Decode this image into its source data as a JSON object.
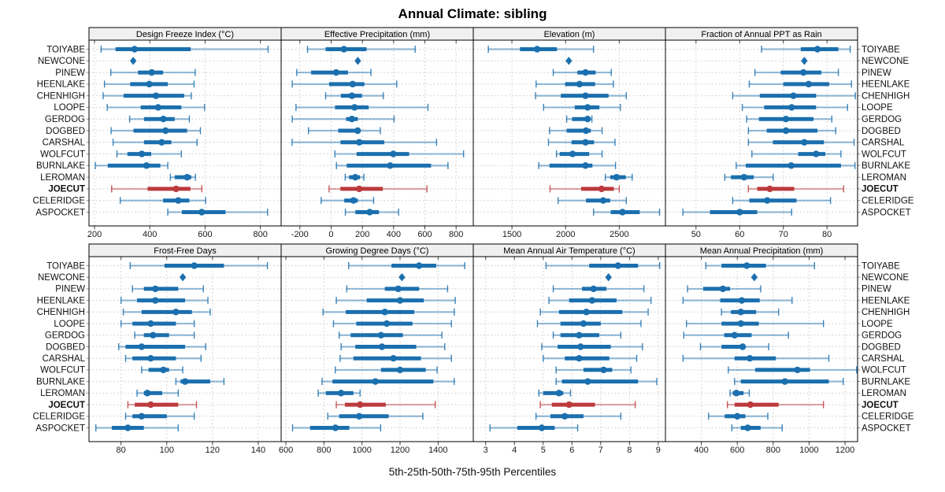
{
  "title": "Annual Climate: sibling",
  "x_axis_title": "5th-25th-50th-75th-95th Percentiles",
  "percentile_labels": [
    "5th",
    "25th",
    "50th",
    "75th",
    "95th"
  ],
  "sites": [
    "TOIYABE",
    "NEWCONE",
    "PINEW",
    "HEENLAKE",
    "CHENHIGH",
    "LOOPE",
    "GERDOG",
    "DOGBED",
    "CARSHAL",
    "WOLFCUT",
    "BURNLAKE",
    "LEROMAN",
    "JOECUT",
    "CELERIDGE",
    "ASPOCKET"
  ],
  "highlight_site": "JOECUT",
  "colors": {
    "primary": "#1b6fae",
    "highlight": "#bb3a3d",
    "strip_bg": "#f0f0f0",
    "grid": "#c9c9c9",
    "axis_text": "#1a1a1a",
    "border": "#000000"
  },
  "chart_data": {
    "type": "dotplot",
    "description": "Percentile range dotplot grid: per site, thin line = 5th-95th, thick line = 25th-75th, dot = 50th percentile; single diamond when all percentiles equal.",
    "panels": [
      {
        "title": "Design Freeze Index (°C)",
        "row": 0,
        "col": 0,
        "xlim": [
          180,
          875
        ],
        "ticks": [
          200,
          400,
          600,
          800
        ],
        "values": [
          [
            224,
            276,
            345,
            548,
            828
          ],
          [
            340,
            340,
            340,
            340,
            340
          ],
          [
            259,
            357,
            407,
            448,
            564
          ],
          [
            236,
            329,
            398,
            465,
            560
          ],
          [
            231,
            305,
            422,
            524,
            550
          ],
          [
            246,
            367,
            430,
            514,
            598
          ],
          [
            327,
            379,
            449,
            490,
            543
          ],
          [
            260,
            341,
            457,
            535,
            583
          ],
          [
            267,
            379,
            443,
            478,
            571
          ],
          [
            281,
            319,
            371,
            405,
            514
          ],
          [
            203,
            248,
            388,
            438,
            465
          ],
          [
            474,
            490,
            535,
            550,
            565
          ],
          [
            262,
            392,
            495,
            547,
            588
          ],
          [
            293,
            448,
            503,
            543,
            602
          ],
          [
            465,
            516,
            588,
            674,
            826
          ]
        ]
      },
      {
        "title": "Effective Precipitation (mm)",
        "row": 0,
        "col": 1,
        "xlim": [
          -320,
          910
        ],
        "ticks": [
          -200,
          0,
          200,
          400,
          600,
          800
        ],
        "values": [
          [
            -151,
            -35,
            82,
            227,
            538
          ],
          [
            171,
            171,
            171,
            171,
            171
          ],
          [
            -220,
            -128,
            32,
            108,
            255
          ],
          [
            -249,
            -13,
            138,
            213,
            420
          ],
          [
            -35,
            62,
            133,
            197,
            334
          ],
          [
            -225,
            25,
            150,
            240,
            620
          ],
          [
            -249,
            96,
            133,
            171,
            403
          ],
          [
            -145,
            45,
            170,
            185,
            315
          ],
          [
            -250,
            60,
            180,
            340,
            675
          ],
          [
            24,
            163,
            398,
            499,
            848
          ],
          [
            34,
            100,
            378,
            640,
            748
          ],
          [
            90,
            115,
            155,
            185,
            210
          ],
          [
            -13,
            59,
            180,
            331,
            613
          ],
          [
            -64,
            84,
            143,
            171,
            272
          ],
          [
            91,
            155,
            247,
            306,
            432
          ]
        ]
      },
      {
        "title": "Elevation (m)",
        "row": 0,
        "col": 2,
        "xlim": [
          1140,
          2930
        ],
        "ticks": [
          1500,
          2000,
          2500
        ],
        "values": [
          [
            1280,
            1575,
            1735,
            1920,
            2260
          ],
          [
            2030,
            2030,
            2030,
            2030,
            2030
          ],
          [
            1885,
            2110,
            2185,
            2280,
            2425
          ],
          [
            1725,
            1995,
            2130,
            2275,
            2445
          ],
          [
            1720,
            1955,
            2185,
            2400,
            2565
          ],
          [
            1795,
            2085,
            2205,
            2315,
            2510
          ],
          [
            2010,
            2060,
            2205,
            2230,
            2245
          ],
          [
            1850,
            2010,
            2190,
            2235,
            2340
          ],
          [
            1840,
            2055,
            2185,
            2265,
            2460
          ],
          [
            1915,
            1945,
            2065,
            2220,
            2340
          ],
          [
            1750,
            1850,
            2185,
            2250,
            2465
          ],
          [
            2370,
            2415,
            2475,
            2560,
            2620
          ],
          [
            1855,
            2145,
            2335,
            2450,
            2500
          ],
          [
            1930,
            2190,
            2350,
            2415,
            2565
          ],
          [
            2260,
            2420,
            2530,
            2690,
            2875
          ]
        ]
      },
      {
        "title": "Fraction of Annual PPT as Rain",
        "row": 0,
        "col": 3,
        "xlim": [
          43,
          87
        ],
        "ticks": [
          50,
          60,
          70,
          80
        ],
        "values": [
          [
            65,
            74,
            77.8,
            82.6,
            85.3
          ],
          [
            74.8,
            74.8,
            74.8,
            74.8,
            74.8
          ],
          [
            63.5,
            69.4,
            74.6,
            78.7,
            82.6
          ],
          [
            62.2,
            70,
            75.8,
            80.5,
            85.6
          ],
          [
            58.4,
            64.6,
            72.3,
            77.5,
            86.5
          ],
          [
            60.6,
            65.6,
            71.9,
            77.5,
            84.7
          ],
          [
            61.6,
            64.4,
            70.6,
            76.9,
            81.1
          ],
          [
            62,
            66.2,
            70.6,
            77.8,
            82
          ],
          [
            62,
            67.6,
            74.8,
            79.3,
            86.2
          ],
          [
            62.8,
            73.4,
            77.5,
            79.6,
            83.2
          ],
          [
            59.2,
            61.4,
            71.8,
            83.2,
            86.4
          ],
          [
            56.6,
            58,
            61,
            63.2,
            67.7
          ],
          [
            62,
            64,
            66.9,
            72.5,
            83.8
          ],
          [
            58.4,
            62.2,
            66.3,
            73,
            80.8
          ],
          [
            47,
            53.2,
            60,
            64,
            71.9
          ]
        ]
      },
      {
        "title": "Frost-Free Days",
        "row": 1,
        "col": 0,
        "xlim": [
          66,
          150
        ],
        "ticks": [
          80,
          100,
          120,
          140
        ],
        "values": [
          [
            84,
            99,
            112,
            125,
            144
          ],
          [
            107,
            107,
            107,
            107,
            107
          ],
          [
            85,
            90,
            95,
            105,
            116
          ],
          [
            80,
            87,
            95,
            108,
            118
          ],
          [
            81,
            89,
            104,
            111,
            119
          ],
          [
            80,
            85,
            93,
            104,
            112
          ],
          [
            86,
            90,
            94,
            101,
            112
          ],
          [
            79,
            82,
            89,
            108,
            117
          ],
          [
            82,
            85,
            93,
            104,
            115
          ],
          [
            89,
            92,
            98.5,
            101,
            107
          ],
          [
            104,
            106,
            108,
            119,
            125
          ],
          [
            87,
            90,
            91.5,
            98,
            105
          ],
          [
            83,
            86,
            93,
            105,
            113
          ],
          [
            82,
            85,
            89,
            100,
            112
          ],
          [
            69,
            76,
            83,
            90,
            105
          ]
        ]
      },
      {
        "title": "Growing Degree Days (°C)",
        "row": 1,
        "col": 1,
        "xlim": [
          575,
          1585
        ],
        "ticks": [
          600,
          800,
          1000,
          1200,
          1400
        ],
        "values": [
          [
            930,
            1155,
            1300,
            1390,
            1540
          ],
          [
            1210,
            1210,
            1210,
            1210,
            1210
          ],
          [
            920,
            1120,
            1190,
            1300,
            1450
          ],
          [
            865,
            1025,
            1200,
            1325,
            1490
          ],
          [
            795,
            915,
            1120,
            1275,
            1485
          ],
          [
            850,
            970,
            1130,
            1265,
            1470
          ],
          [
            880,
            940,
            1100,
            1215,
            1420
          ],
          [
            890,
            965,
            1105,
            1285,
            1435
          ],
          [
            885,
            955,
            1165,
            1310,
            1470
          ],
          [
            860,
            1100,
            1200,
            1335,
            1395
          ],
          [
            790,
            845,
            1070,
            1375,
            1485
          ],
          [
            770,
            810,
            890,
            955,
            990
          ],
          [
            865,
            910,
            990,
            1125,
            1385
          ],
          [
            820,
            880,
            985,
            1140,
            1320
          ],
          [
            635,
            727,
            860,
            933,
            1098
          ]
        ]
      },
      {
        "title": "Mean Annual Air Temperature (°C)",
        "row": 1,
        "col": 2,
        "xlim": [
          2.57,
          9.25
        ],
        "ticks": [
          3,
          4,
          5,
          6,
          7,
          8,
          9
        ],
        "values": [
          [
            5.1,
            6.6,
            7.6,
            8.3,
            9.05
          ],
          [
            7.27,
            7.27,
            7.27,
            7.27,
            7.27
          ],
          [
            5.35,
            6.35,
            6.75,
            7.2,
            8.5
          ],
          [
            5.2,
            5.9,
            6.7,
            7.55,
            8.75
          ],
          [
            4.9,
            5.55,
            6.5,
            7.75,
            8.65
          ],
          [
            4.8,
            5.6,
            6.4,
            7.0,
            8.4
          ],
          [
            5.35,
            5.6,
            6.25,
            6.95,
            7.7
          ],
          [
            4.95,
            5.5,
            6.3,
            7.35,
            8.45
          ],
          [
            5.0,
            5.75,
            6.25,
            7.3,
            8.25
          ],
          [
            5.45,
            6.4,
            7.1,
            7.4,
            8.05
          ],
          [
            5.45,
            5.65,
            6.55,
            8.3,
            8.95
          ],
          [
            4.85,
            5.0,
            5.55,
            5.7,
            5.95
          ],
          [
            4.9,
            5.3,
            5.9,
            6.8,
            8.2
          ],
          [
            4.75,
            5.25,
            5.75,
            6.4,
            7.7
          ],
          [
            3.15,
            4.1,
            4.95,
            5.4,
            6.2
          ]
        ]
      },
      {
        "title": "Mean Annual Precipitation (mm)",
        "row": 1,
        "col": 3,
        "xlim": [
          200,
          1270
        ],
        "ticks": [
          400,
          600,
          800,
          1000,
          1200
        ],
        "values": [
          [
            425,
            512,
            653,
            760,
            1030
          ],
          [
            695,
            695,
            695,
            695,
            695
          ],
          [
            323,
            410,
            520,
            560,
            730
          ],
          [
            298,
            505,
            625,
            725,
            905
          ],
          [
            512,
            565,
            620,
            705,
            830
          ],
          [
            317,
            512,
            620,
            720,
            1080
          ],
          [
            302,
            527,
            585,
            680,
            885
          ],
          [
            395,
            512,
            630,
            645,
            775
          ],
          [
            298,
            585,
            670,
            815,
            1110
          ],
          [
            550,
            700,
            935,
            1005,
            1265
          ],
          [
            585,
            620,
            865,
            1110,
            1190
          ],
          [
            560,
            575,
            595,
            635,
            667
          ],
          [
            545,
            585,
            673,
            830,
            1080
          ],
          [
            440,
            530,
            600,
            645,
            770
          ],
          [
            570,
            620,
            658,
            730,
            850
          ]
        ]
      }
    ]
  }
}
